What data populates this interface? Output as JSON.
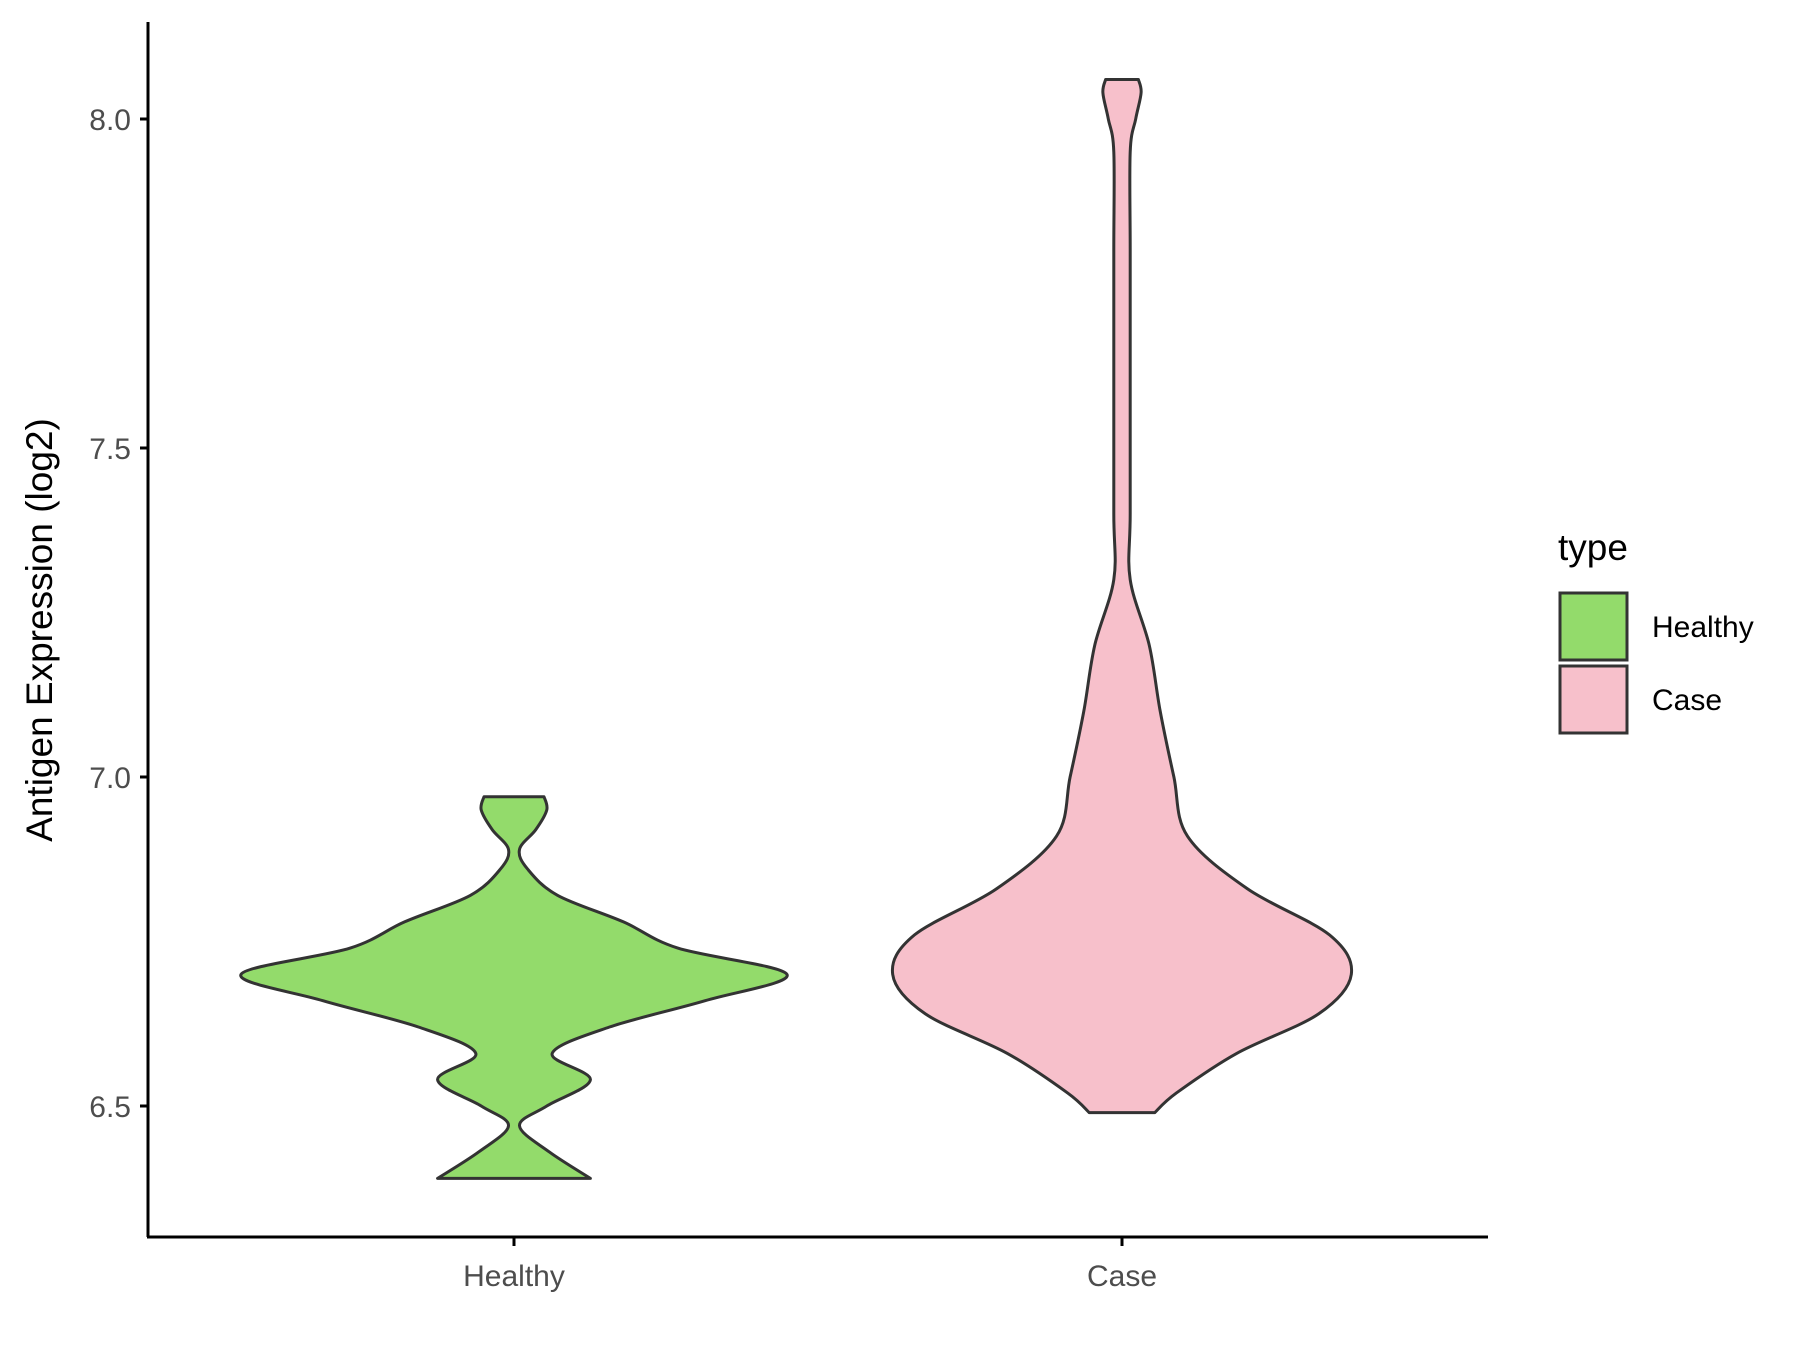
{
  "chart_data": {
    "type": "violin",
    "title": "",
    "xlabel": "",
    "ylabel": "Antigen Expression (log2)",
    "ylim": [
      6.3,
      8.15
    ],
    "yticks": [
      6.5,
      7.0,
      7.5,
      8.0
    ],
    "ytick_labels": [
      "6.5",
      "7.0",
      "7.5",
      "8.0"
    ],
    "categories": [
      "Healthy",
      "Case"
    ],
    "grid": false,
    "legend": {
      "title": "type",
      "position": "right",
      "entries": [
        "Healthy",
        "Case"
      ]
    },
    "series": [
      {
        "name": "Healthy",
        "color": "#93DB6B",
        "min": 6.39,
        "max": 6.97,
        "density_y": [
          6.39,
          6.43,
          6.47,
          6.5,
          6.54,
          6.58,
          6.62,
          6.66,
          6.7,
          6.74,
          6.78,
          6.82,
          6.86,
          6.89,
          6.92,
          6.95,
          6.97
        ],
        "density_w": [
          0.28,
          0.13,
          0.02,
          0.12,
          0.28,
          0.14,
          0.35,
          0.7,
          1.0,
          0.6,
          0.4,
          0.16,
          0.05,
          0.02,
          0.08,
          0.12,
          0.11
        ]
      },
      {
        "name": "Case",
        "color": "#F7C0CB",
        "min": 6.49,
        "max": 8.06,
        "density_y": [
          6.49,
          6.52,
          6.58,
          6.64,
          6.7,
          6.76,
          6.83,
          6.91,
          7.0,
          7.1,
          7.2,
          7.3,
          7.4,
          7.6,
          7.8,
          7.95,
          8.0,
          8.04,
          8.06
        ],
        "density_w": [
          0.12,
          0.2,
          0.42,
          0.72,
          0.84,
          0.76,
          0.46,
          0.24,
          0.19,
          0.14,
          0.1,
          0.03,
          0.03,
          0.03,
          0.03,
          0.03,
          0.05,
          0.07,
          0.06
        ]
      }
    ]
  }
}
